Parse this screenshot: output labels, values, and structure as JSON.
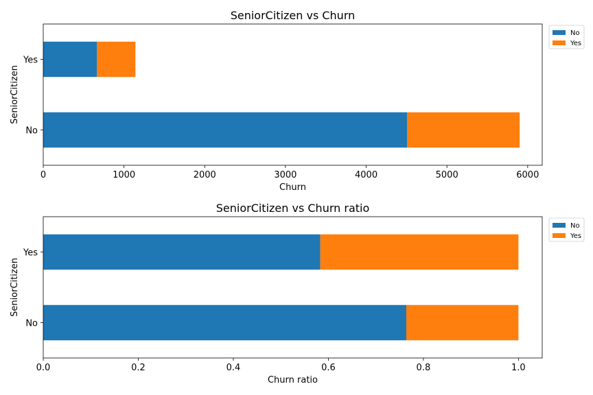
{
  "colors": {
    "No": "#1f77b4",
    "Yes": "#ff7f0e"
  },
  "chart_data": [
    {
      "type": "bar",
      "orientation": "horizontal",
      "stacked": true,
      "title": "SeniorCitizen vs Churn",
      "xlabel": "Churn",
      "ylabel": "SeniorCitizen",
      "categories": [
        "No",
        "Yes"
      ],
      "xlim": [
        0,
        6180
      ],
      "xticks": [
        0,
        1000,
        2000,
        3000,
        4000,
        5000,
        6000
      ],
      "xtick_labels": [
        "0",
        "1000",
        "2000",
        "3000",
        "4000",
        "5000",
        "6000"
      ],
      "series": [
        {
          "name": "No",
          "values": [
            4508,
            666
          ]
        },
        {
          "name": "Yes",
          "values": [
            1393,
            476
          ]
        }
      ],
      "legend": {
        "placement": "outside-top-right",
        "entries": [
          "No",
          "Yes"
        ]
      },
      "grid": false
    },
    {
      "type": "bar",
      "orientation": "horizontal",
      "stacked": true,
      "title": "SeniorCitizen vs Churn ratio",
      "xlabel": "Churn ratio",
      "ylabel": "SeniorCitizen",
      "categories": [
        "No",
        "Yes"
      ],
      "xlim": [
        0,
        1.05
      ],
      "xticks": [
        0,
        0.2,
        0.4,
        0.6,
        0.8,
        1.0
      ],
      "xtick_labels": [
        "0.0",
        "0.2",
        "0.4",
        "0.6",
        "0.8",
        "1.0"
      ],
      "series": [
        {
          "name": "No",
          "values": [
            0.764,
            0.583
          ]
        },
        {
          "name": "Yes",
          "values": [
            0.236,
            0.417
          ]
        }
      ],
      "legend": {
        "placement": "outside-top-right",
        "entries": [
          "No",
          "Yes"
        ]
      },
      "grid": false
    }
  ]
}
